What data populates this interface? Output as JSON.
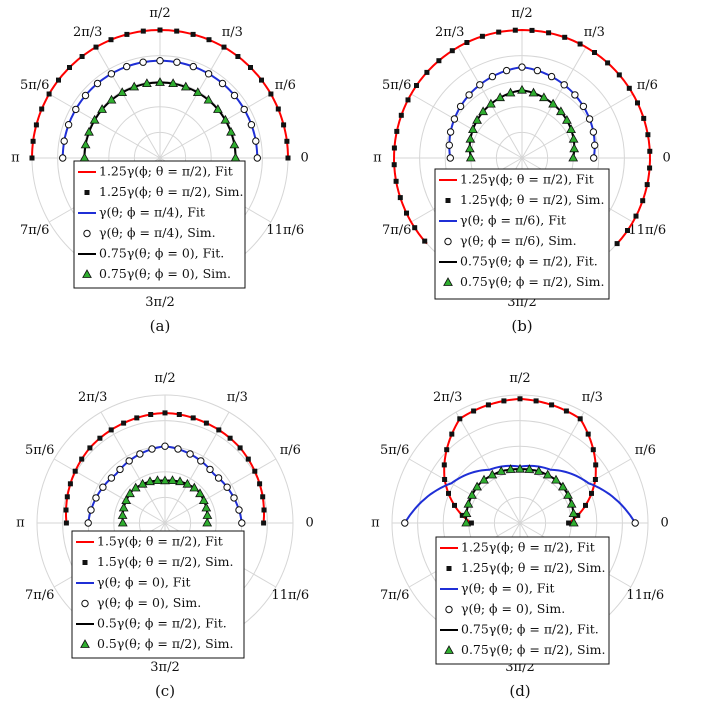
{
  "chart_data": [
    {
      "type": "polar",
      "panel_label": "(a)",
      "angle_ticks": [
        "0",
        "π/6",
        "π/3",
        "π/2",
        "2π/3",
        "5π/6",
        "π",
        "7π/6",
        "3π/2",
        "11π/6"
      ],
      "rlim": [
        0,
        1.25
      ],
      "grid": true,
      "legend_position": "bottom-center",
      "series": [
        {
          "name": "1.25γ(ϕ; θ = π/2), Fit",
          "kind": "line",
          "color": "#ff0000",
          "angle_range": [
            0,
            180
          ],
          "r_values": [
            1.0,
            1.0
          ]
        },
        {
          "name": "1.25γ(ϕ; θ = π/2), Sim.",
          "kind": "markers",
          "marker": "square",
          "color": "#000000",
          "angle_range": [
            0,
            180
          ],
          "r_values": [
            1.0,
            1.0
          ]
        },
        {
          "name": "γ(θ; ϕ = π/4), Fit",
          "kind": "line",
          "color": "#1f2fd6",
          "angle_range": [
            0,
            180
          ],
          "r_values": [
            0.76,
            0.76
          ]
        },
        {
          "name": "γ(θ; ϕ = π/4), Sim.",
          "kind": "markers",
          "marker": "circle",
          "color": "#000000",
          "angle_range": [
            0,
            180
          ],
          "r_values": [
            0.76,
            0.76
          ]
        },
        {
          "name": "0.75γ(θ; ϕ = 0), Fit.",
          "kind": "line",
          "color": "#000000",
          "angle_range": [
            0,
            180
          ],
          "r_values": [
            0.59,
            0.59
          ]
        },
        {
          "name": "0.75γ(θ; ϕ = 0), Sim.",
          "kind": "markers",
          "marker": "triangle",
          "color": "#2fae2f",
          "angle_range": [
            0,
            180
          ],
          "r_values": [
            0.59,
            0.59
          ]
        }
      ]
    },
    {
      "type": "polar",
      "panel_label": "(b)",
      "angle_ticks": [
        "0",
        "π/6",
        "π/3",
        "π/2",
        "2π/3",
        "5π/6",
        "π",
        "7π/6",
        "3π/2",
        "11π/6"
      ],
      "rlim": [
        0,
        1.25
      ],
      "grid": true,
      "legend_position": "bottom-center",
      "series": [
        {
          "name": "1.25γ(ϕ; θ = π/2), Fit",
          "kind": "line",
          "color": "#ff0000",
          "angle_range": [
            -42,
            222
          ],
          "r_values": [
            1.0,
            1.0
          ]
        },
        {
          "name": "1.25γ(ϕ; θ = π/2), Sim.",
          "kind": "markers",
          "marker": "square",
          "color": "#000000",
          "angle_range": [
            -42,
            222
          ],
          "r_values": [
            1.0,
            1.0
          ]
        },
        {
          "name": "γ(θ; ϕ = π/6), Fit",
          "kind": "line",
          "color": "#1f2fd6",
          "angle_range": [
            0,
            180
          ],
          "r_values": [
            0.56,
            0.71,
            0.56
          ]
        },
        {
          "name": "γ(θ; ϕ = π/6), Sim.",
          "kind": "markers",
          "marker": "circle",
          "color": "#000000",
          "angle_range": [
            0,
            180
          ],
          "r_values": [
            0.56,
            0.71,
            0.56
          ]
        },
        {
          "name": "0.75γ(θ; ϕ = π/2), Fit.",
          "kind": "line",
          "color": "#000000",
          "angle_range": [
            0,
            180
          ],
          "r_values": [
            0.4,
            0.53,
            0.4
          ]
        },
        {
          "name": "0.75γ(θ; ϕ = π/2), Sim.",
          "kind": "markers",
          "marker": "triangle",
          "color": "#2fae2f",
          "angle_range": [
            0,
            180
          ],
          "r_values": [
            0.4,
            0.53,
            0.4
          ]
        }
      ]
    },
    {
      "type": "polar",
      "panel_label": "(c)",
      "angle_ticks": [
        "0",
        "π/6",
        "π/3",
        "π/2",
        "2π/3",
        "5π/6",
        "π",
        "7π/6",
        "3π/2",
        "11π/6"
      ],
      "rlim": [
        0,
        1.25
      ],
      "grid": true,
      "legend_position": "bottom-center",
      "series": [
        {
          "name": "1.5γ(ϕ; θ = π/2), Fit",
          "kind": "line",
          "color": "#ff0000",
          "angle_range": [
            0,
            180
          ],
          "r_values": [
            0.77,
            0.83,
            0.86,
            0.83,
            0.77
          ]
        },
        {
          "name": "1.5γ(ϕ; θ = π/2), Sim.",
          "kind": "markers",
          "marker": "square",
          "color": "#000000",
          "angle_range": [
            0,
            180
          ],
          "r_values": [
            0.77,
            0.83,
            0.86,
            0.83,
            0.77
          ]
        },
        {
          "name": "γ(θ; ϕ = 0), Fit",
          "kind": "line",
          "color": "#1f2fd6",
          "angle_range": [
            0,
            180
          ],
          "r_values": [
            0.6,
            0.54,
            0.6,
            0.54,
            0.6
          ]
        },
        {
          "name": "γ(θ; ϕ = 0), Sim.",
          "kind": "markers",
          "marker": "circle",
          "color": "#000000",
          "angle_range": [
            0,
            180
          ],
          "r_values": [
            0.6,
            0.54,
            0.6,
            0.54,
            0.6
          ]
        },
        {
          "name": "0.5γ(θ; ϕ = π/2), Fit.",
          "kind": "line",
          "color": "#000000",
          "angle_range": [
            0,
            180
          ],
          "r_values": [
            0.33,
            0.36,
            0.33,
            0.36,
            0.33
          ]
        },
        {
          "name": "0.5γ(θ; ϕ = π/2), Sim.",
          "kind": "markers",
          "marker": "triangle",
          "color": "#2fae2f",
          "angle_range": [
            0,
            180
          ],
          "r_values": [
            0.33,
            0.36,
            0.33,
            0.36,
            0.33
          ]
        }
      ]
    },
    {
      "type": "polar",
      "panel_label": "(d)",
      "angle_ticks": [
        "0",
        "π/6",
        "π/3",
        "π/2",
        "2π/3",
        "5π/6",
        "π",
        "7π/6",
        "3π/2",
        "11π/6"
      ],
      "rlim": [
        0,
        1.25
      ],
      "grid": true,
      "legend_position": "bottom-center",
      "series": [
        {
          "name": "1.25γ(ϕ; θ = π/2), Fit",
          "kind": "line",
          "color": "#ff0000",
          "angle_range": [
            0,
            180
          ],
          "r_values": [
            0.38,
            0.68,
            0.94,
            0.97,
            0.94,
            0.68,
            0.38
          ]
        },
        {
          "name": "1.25γ(ϕ; θ = π/2), Sim.",
          "kind": "markers",
          "marker": "square",
          "color": "#000000",
          "angle_range": [
            0,
            180
          ],
          "r_values": [
            0.38,
            0.68,
            0.94,
            0.97,
            0.94,
            0.68,
            0.38
          ]
        },
        {
          "name": "γ(θ; ϕ = 0), Fit",
          "kind": "line",
          "color": "#1f2fd6",
          "angle_range": [
            0,
            180
          ],
          "r_values": [
            0.9,
            0.62,
            0.48,
            0.44,
            0.48,
            0.62,
            0.9
          ]
        },
        {
          "name": "γ(θ; ϕ = 0), Sim.",
          "kind": "markers",
          "marker": "circle",
          "color": "#000000",
          "angle_range": [
            0,
            180
          ],
          "r_values": [
            0.9,
            0.9
          ]
        },
        {
          "name": "0.75γ(θ; ϕ = π/2), Fit.",
          "kind": "line",
          "color": "#000000",
          "angle_range": [
            0,
            180
          ],
          "r_values": [
            0.42,
            0.44,
            0.42,
            0.44,
            0.42
          ]
        },
        {
          "name": "0.75γ(θ; ϕ = π/2), Sim.",
          "kind": "markers",
          "marker": "triangle",
          "color": "#2fae2f",
          "angle_range": [
            0,
            180
          ],
          "r_values": [
            0.42,
            0.44,
            0.42,
            0.44,
            0.42
          ]
        }
      ]
    }
  ]
}
